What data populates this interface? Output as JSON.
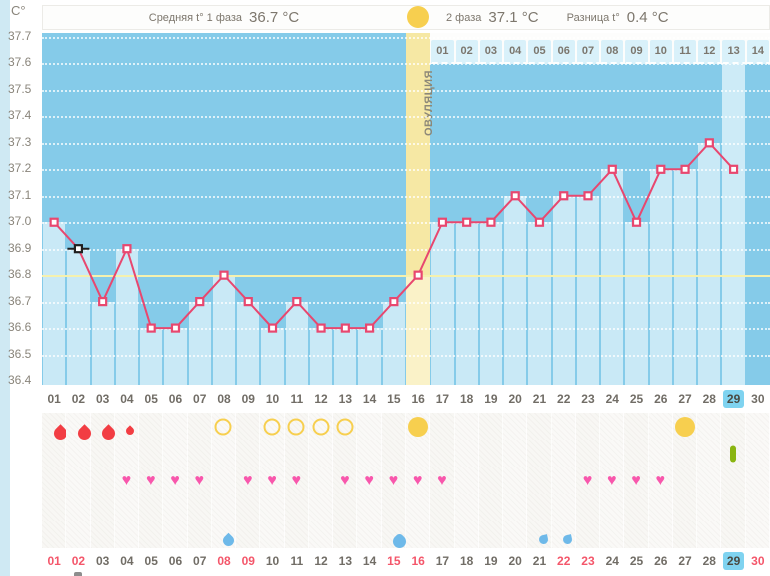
{
  "unit_label": "C°",
  "summary": {
    "phase1_label": "Средняя t° 1 фаза",
    "phase1_value": "36.7 °C",
    "phase2_label": "2 фаза",
    "phase2_value": "37.1 °C",
    "diff_label": "Разница t°",
    "diff_value": "0.4 °C"
  },
  "ovulation_band_label": "ОВУЛЯЦИЯ",
  "chart_data": {
    "type": "line",
    "title": "Basal body temperature (BBT) cycle chart",
    "ylabel": "C°",
    "ylim": [
      36.4,
      37.7
    ],
    "ytick_labels": [
      "37.7",
      "37.6",
      "37.5",
      "37.4",
      "37.3",
      "37.2",
      "37.1",
      "37.0",
      "36.9",
      "36.8",
      "36.7",
      "36.6",
      "36.5",
      "36.4"
    ],
    "x_days": [
      1,
      2,
      3,
      4,
      5,
      6,
      7,
      8,
      9,
      10,
      11,
      12,
      13,
      14,
      15,
      16,
      17,
      18,
      19,
      20,
      21,
      22,
      23,
      24,
      25,
      26,
      27,
      28,
      29,
      30
    ],
    "temps_c": [
      37.0,
      36.9,
      36.7,
      36.9,
      36.6,
      36.6,
      36.7,
      36.8,
      36.7,
      36.6,
      36.7,
      36.6,
      36.6,
      36.6,
      36.7,
      36.8,
      37.0,
      37.0,
      37.0,
      37.1,
      37.0,
      37.1,
      37.1,
      37.2,
      37.0,
      37.2,
      37.2,
      37.3,
      37.2,
      null
    ],
    "coverline_c": 36.8,
    "ovulation_day": 16,
    "selected_day": 2,
    "today_day": 29,
    "phase1_avg_c": 36.7,
    "phase2_avg_c": 37.1,
    "temp_diff_c": 0.4,
    "dpo_start_day": 17,
    "dpo_labels": [
      "01",
      "02",
      "03",
      "04",
      "05",
      "06",
      "07",
      "08",
      "09",
      "10",
      "11",
      "12",
      "13",
      "14"
    ],
    "grid": "dotted-horizontal-per-0.1C",
    "legend_position": "none"
  },
  "day_labels": [
    "01",
    "02",
    "03",
    "04",
    "05",
    "06",
    "07",
    "08",
    "09",
    "10",
    "11",
    "12",
    "13",
    "14",
    "15",
    "16",
    "17",
    "18",
    "19",
    "20",
    "21",
    "22",
    "23",
    "24",
    "25",
    "26",
    "27",
    "28",
    "29",
    "30"
  ],
  "weekend_days": [
    1,
    2,
    8,
    9,
    15,
    16,
    22,
    23,
    30
  ],
  "symbol_rows": {
    "menstruation_days": [
      {
        "day": 1,
        "size": "big"
      },
      {
        "day": 2,
        "size": "big"
      },
      {
        "day": 3,
        "size": "big"
      },
      {
        "day": 4,
        "size": "small"
      }
    ],
    "ovulation_test_negative_days": [
      8,
      10,
      11,
      12,
      13
    ],
    "ovulation_test_positive_days": [
      16,
      27
    ],
    "medication_days": [
      29
    ],
    "intimacy_days": [
      4,
      5,
      6,
      7,
      9,
      10,
      11,
      13,
      14,
      15,
      16,
      17,
      23,
      24,
      25,
      26
    ],
    "discharge_days": [
      {
        "day": 8,
        "shape": "drop"
      },
      {
        "day": 15,
        "shape": "blob"
      },
      {
        "day": 21,
        "shape": "comma"
      },
      {
        "day": 22,
        "shape": "comma"
      }
    ],
    "partial_bottom_marker_day": 2
  },
  "icons": {
    "intimacy_glyph": "♥"
  },
  "colors": {
    "chart_bg": "#85cbe9",
    "column_fill": "#c9e9f6",
    "today_column_fill": "#cdebf7",
    "ovulation_band": "#f6e8a4",
    "ovulation_band_fill": "#faf2c8",
    "temp_line": "#e8476f",
    "marker_fill": "#ffffff",
    "selected_marker": "#1f1f1f",
    "coverline": "#f5f1ae",
    "dpo_box": "#d9f1fa",
    "yellow_circle": "#f7cf4f",
    "heart": "#f857ac",
    "menstruation_drop": "#f23d43",
    "discharge_drop": "#6eb9e9",
    "medication_pill": "#8ab511",
    "weekend_text": "#f4566a",
    "day_text": "#716d66",
    "today_box": "#7fd3f0",
    "axis_text": "#8a857b"
  }
}
